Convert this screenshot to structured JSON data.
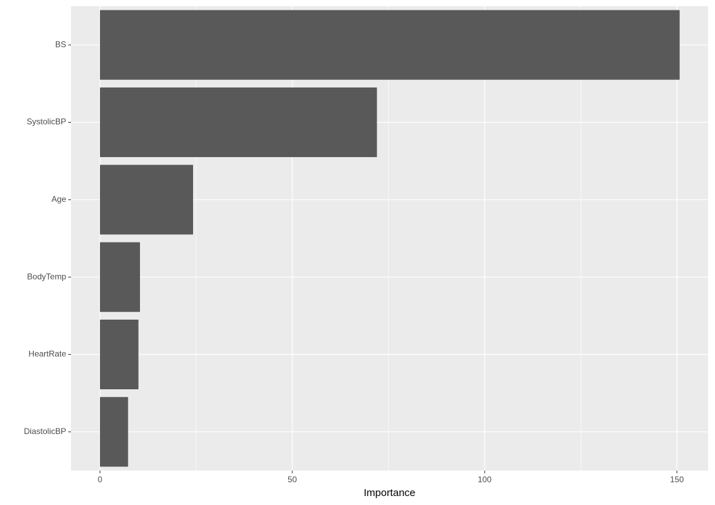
{
  "chart_data": {
    "type": "barh",
    "categories": [
      "BS",
      "SystolicBP",
      "Age",
      "BodyTemp",
      "HeartRate",
      "DiastolicBP"
    ],
    "values": [
      150.7,
      72.0,
      24.2,
      10.4,
      10.0,
      7.3
    ],
    "color": "#595959",
    "xlabel": "Importance",
    "xlim": [
      -7.53,
      158.1
    ],
    "xticks": [
      0,
      50,
      100,
      150
    ],
    "grid": true
  }
}
